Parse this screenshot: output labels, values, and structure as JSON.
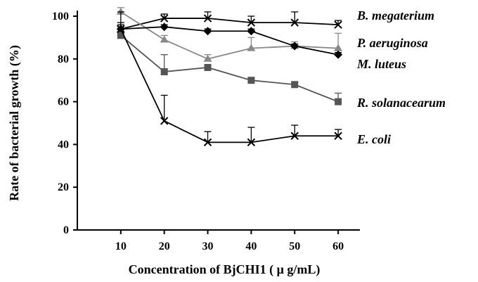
{
  "chart_data": {
    "type": "line",
    "xlabel": "Concentration of BjCHI1 ( μ g/mL)",
    "ylabel": "Rate of bacterial growth (%)",
    "x": [
      10,
      20,
      30,
      40,
      50,
      60
    ],
    "xticks": [
      "10",
      "20",
      "30",
      "40",
      "50",
      "60"
    ],
    "yticks": [
      "0",
      "20",
      "40",
      "60",
      "80",
      "100"
    ],
    "xlim": [
      0,
      65
    ],
    "ylim": [
      0,
      100
    ],
    "grid": false,
    "legend": "direct labels at line ends",
    "series": [
      {
        "name": "B. megaterium",
        "marker": "x",
        "color": "#000000",
        "values": [
          94,
          99,
          99,
          97,
          97,
          96
        ],
        "errors": [
          3,
          2,
          3,
          3,
          5,
          2
        ]
      },
      {
        "name": "P. aeruginosa",
        "marker": "triangle",
        "color": "#888888",
        "values": [
          102,
          89,
          80,
          85,
          86,
          85
        ],
        "errors": [
          2,
          2,
          2,
          5,
          2,
          7
        ]
      },
      {
        "name": "M. luteus",
        "marker": "diamond",
        "color": "#000000",
        "values": [
          94,
          95,
          93,
          93,
          86,
          82
        ],
        "errors": [
          2,
          1,
          1,
          1,
          1,
          1
        ]
      },
      {
        "name": "R. solanacearum",
        "marker": "square",
        "color": "#555555",
        "values": [
          91,
          74,
          76,
          70,
          68,
          60
        ],
        "errors": [
          1,
          8,
          1,
          1,
          1,
          4
        ]
      },
      {
        "name": "E. coli",
        "marker": "x",
        "color": "#000000",
        "values": [
          94,
          51,
          41,
          41,
          44,
          44
        ],
        "errors": [
          8,
          12,
          5,
          7,
          5,
          3
        ]
      }
    ]
  }
}
